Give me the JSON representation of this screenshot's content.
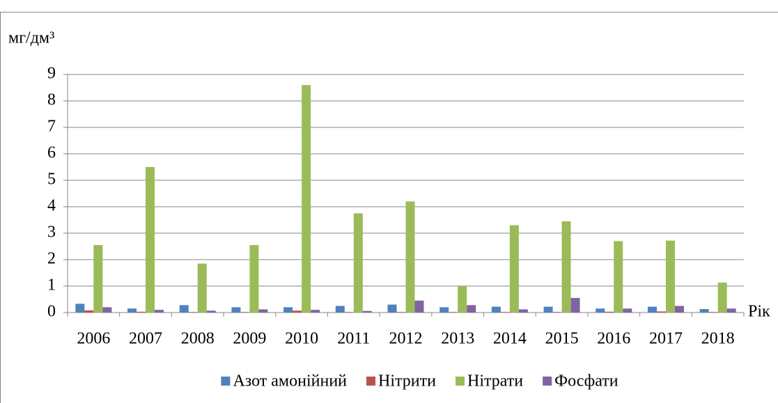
{
  "chart_data": {
    "type": "bar",
    "y_label": "мг/дм³",
    "x_label": "Рік",
    "categories": [
      "2006",
      "2007",
      "2008",
      "2009",
      "2010",
      "2011",
      "2012",
      "2013",
      "2014",
      "2015",
      "2016",
      "2017",
      "2018"
    ],
    "series": [
      {
        "name": "Азот амонійний",
        "color": "#4f81bd",
        "values": [
          0.33,
          0.15,
          0.28,
          0.2,
          0.2,
          0.25,
          0.3,
          0.2,
          0.22,
          0.22,
          0.15,
          0.22,
          0.13
        ]
      },
      {
        "name": "Нітрити",
        "color": "#c0504d",
        "values": [
          0.08,
          0.03,
          0.02,
          0.02,
          0.07,
          0.02,
          0.02,
          0.02,
          0.02,
          0.02,
          0.03,
          0.04,
          0.02
        ]
      },
      {
        "name": "Нітрати",
        "color": "#9bbb59",
        "values": [
          2.55,
          5.5,
          1.85,
          2.55,
          8.6,
          3.75,
          4.2,
          1.0,
          3.3,
          3.45,
          2.7,
          2.72,
          1.13
        ]
      },
      {
        "name": "Фосфати",
        "color": "#8064a2",
        "values": [
          0.2,
          0.1,
          0.07,
          0.12,
          0.1,
          0.06,
          0.45,
          0.28,
          0.12,
          0.55,
          0.15,
          0.25,
          0.15
        ]
      }
    ],
    "ylim": [
      0,
      9
    ],
    "yticks": [
      0,
      1,
      2,
      3,
      4,
      5,
      6,
      7,
      8,
      9
    ],
    "grid": true
  }
}
